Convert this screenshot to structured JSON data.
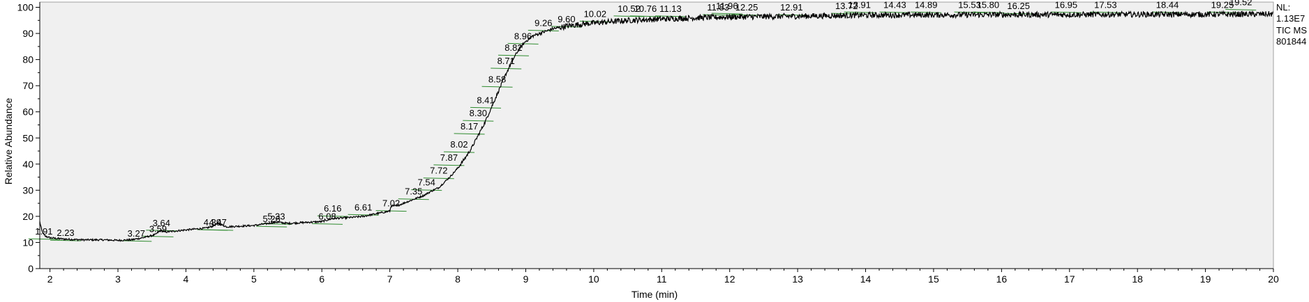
{
  "chart_data": {
    "type": "line",
    "xlabel": "Time (min)",
    "ylabel": "Relative Abundance",
    "xlim": [
      1.85,
      20.0
    ],
    "ylim": [
      0,
      102
    ],
    "x_ticks": [
      2,
      3,
      4,
      5,
      6,
      7,
      8,
      9,
      10,
      11,
      12,
      13,
      14,
      15,
      16,
      17,
      18,
      19,
      20
    ],
    "y_ticks": [
      0,
      10,
      20,
      30,
      40,
      50,
      60,
      70,
      80,
      90,
      100
    ],
    "grid": false,
    "info": [
      "NL:",
      "1.13E7",
      "TIC  MS",
      "801844"
    ],
    "colors": {
      "trace": "#000000",
      "baseline": "#2e8b2e",
      "plot_bg": "#f0f0f0",
      "frame": "#a0a0a0"
    },
    "series": [
      {
        "x": [
          1.85,
          1.88,
          1.92,
          2.0,
          2.2,
          2.5,
          2.8,
          3.0,
          3.2,
          3.4,
          3.55,
          3.62,
          3.64,
          3.7,
          4.0,
          4.3,
          4.39,
          4.47,
          4.6,
          5.0,
          5.26,
          5.33,
          5.5,
          6.0,
          6.16,
          6.4,
          6.61,
          6.8,
          7.0,
          7.02,
          7.1,
          7.2,
          7.35,
          7.5,
          7.6,
          7.72,
          7.8,
          7.9,
          8.0,
          8.1,
          8.2,
          8.3,
          8.4,
          8.5,
          8.6,
          8.7,
          8.8,
          8.9,
          9.0,
          9.1,
          9.26,
          9.4,
          9.6,
          9.8,
          10.0,
          10.5,
          11.0,
          11.5,
          12.0,
          13.0,
          14.0,
          15.0,
          16.0,
          17.0,
          18.0,
          19.0,
          20.0
        ],
        "y": [
          18.0,
          14.5,
          12.5,
          11.8,
          11.3,
          11.0,
          11.0,
          10.8,
          11.0,
          12.0,
          13.0,
          14.5,
          14.5,
          14.0,
          14.8,
          15.5,
          16.2,
          17.3,
          16.0,
          16.5,
          17.5,
          17.8,
          17.3,
          18.0,
          19.2,
          19.5,
          20.0,
          21.0,
          22.0,
          24.0,
          24.0,
          25.0,
          26.5,
          28.0,
          29.5,
          31.0,
          33.0,
          35.5,
          38.5,
          42.0,
          46.0,
          51.0,
          56.0,
          62.0,
          68.0,
          74.0,
          79.5,
          84.0,
          87.0,
          89.0,
          90.5,
          91.8,
          92.8,
          93.5,
          94.0,
          95.0,
          95.5,
          96.0,
          96.3,
          96.6,
          97.0,
          97.1,
          97.2,
          97.2,
          97.3,
          97.3,
          97.4
        ]
      }
    ],
    "peak_labels": [
      {
        "text": "1.91",
        "x": 1.91,
        "y": 13.0
      },
      {
        "text": "2.23",
        "x": 2.23,
        "y": 12.5
      },
      {
        "text": "3.27",
        "x": 3.27,
        "y": 12.3
      },
      {
        "text": "3.59",
        "x": 3.59,
        "y": 14.0
      },
      {
        "text": "3.64",
        "x": 3.64,
        "y": 16.3
      },
      {
        "text": "4.39",
        "x": 4.39,
        "y": 16.5
      },
      {
        "text": "4.47",
        "x": 4.47,
        "y": 16.5
      },
      {
        "text": "5.26",
        "x": 5.26,
        "y": 17.8
      },
      {
        "text": "5.33",
        "x": 5.33,
        "y": 18.8
      },
      {
        "text": "6.08",
        "x": 6.08,
        "y": 18.8
      },
      {
        "text": "6.16",
        "x": 6.16,
        "y": 21.8
      },
      {
        "text": "6.61",
        "x": 6.61,
        "y": 22.3
      },
      {
        "text": "7.02",
        "x": 7.02,
        "y": 23.8
      },
      {
        "text": "7.35",
        "x": 7.35,
        "y": 28.3
      },
      {
        "text": "7.54",
        "x": 7.54,
        "y": 31.8
      },
      {
        "text": "7.72",
        "x": 7.72,
        "y": 36.3
      },
      {
        "text": "7.87",
        "x": 7.87,
        "y": 41.3
      },
      {
        "text": "8.02",
        "x": 8.02,
        "y": 46.3
      },
      {
        "text": "8.17",
        "x": 8.17,
        "y": 53.3
      },
      {
        "text": "8.30",
        "x": 8.3,
        "y": 58.3
      },
      {
        "text": "8.41",
        "x": 8.41,
        "y": 63.3
      },
      {
        "text": "8.58",
        "x": 8.58,
        "y": 71.3
      },
      {
        "text": "8.71",
        "x": 8.71,
        "y": 78.3
      },
      {
        "text": "8.82",
        "x": 8.82,
        "y": 83.3
      },
      {
        "text": "8.96",
        "x": 8.96,
        "y": 87.8
      },
      {
        "text": "9.26",
        "x": 9.26,
        "y": 92.8
      },
      {
        "text": "9.60",
        "x": 9.6,
        "y": 94.3
      },
      {
        "text": "10.02",
        "x": 10.02,
        "y": 96.3
      },
      {
        "text": "10.52",
        "x": 10.52,
        "y": 98.3
      },
      {
        "text": "10.76",
        "x": 10.76,
        "y": 98.3
      },
      {
        "text": "11.13",
        "x": 11.13,
        "y": 98.3
      },
      {
        "text": "11.83",
        "x": 11.83,
        "y": 98.8
      },
      {
        "text": "11.96",
        "x": 11.96,
        "y": 99.3
      },
      {
        "text": "12.25",
        "x": 12.25,
        "y": 98.8
      },
      {
        "text": "12.91",
        "x": 12.91,
        "y": 98.8
      },
      {
        "text": "13.72",
        "x": 13.72,
        "y": 99.3
      },
      {
        "text": "13.91",
        "x": 13.91,
        "y": 99.8
      },
      {
        "text": "14.43",
        "x": 14.43,
        "y": 99.8
      },
      {
        "text": "14.89",
        "x": 14.89,
        "y": 99.8
      },
      {
        "text": "15.53",
        "x": 15.53,
        "y": 99.8
      },
      {
        "text": "15.80",
        "x": 15.8,
        "y": 99.8
      },
      {
        "text": "16.25",
        "x": 16.25,
        "y": 99.3
      },
      {
        "text": "16.95",
        "x": 16.95,
        "y": 99.8
      },
      {
        "text": "17.53",
        "x": 17.53,
        "y": 99.8
      },
      {
        "text": "18.44",
        "x": 18.44,
        "y": 99.8
      },
      {
        "text": "19.25",
        "x": 19.25,
        "y": 99.8
      },
      {
        "text": "19.52",
        "x": 19.52,
        "y": 100.8
      }
    ]
  }
}
